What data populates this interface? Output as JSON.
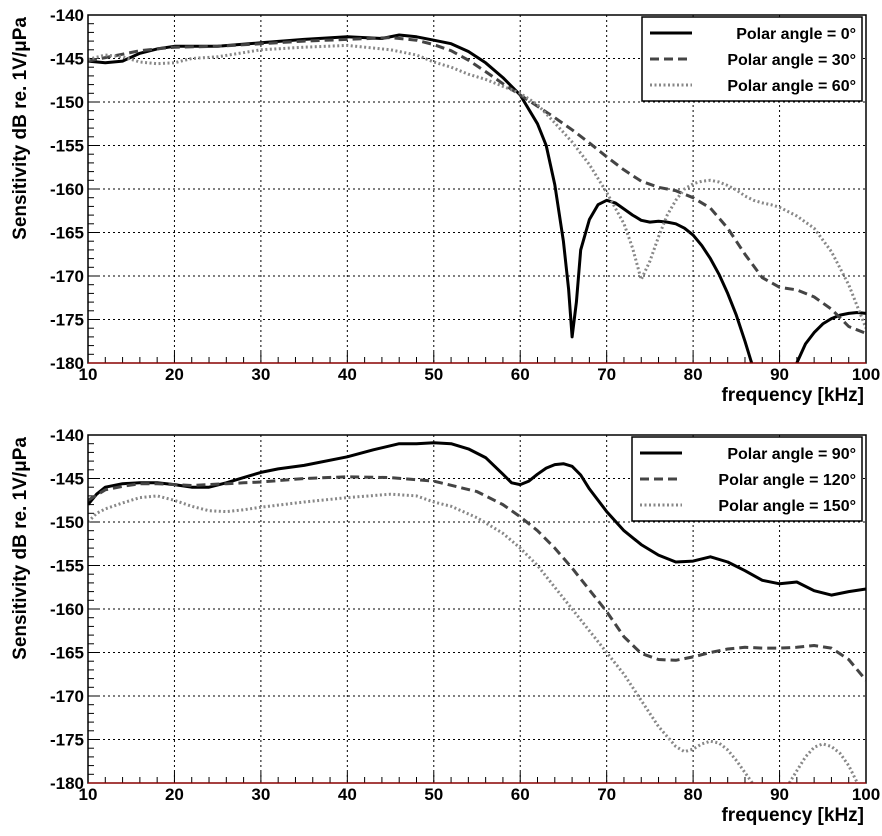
{
  "chart_data": [
    {
      "type": "line",
      "title": "",
      "xlabel": "frequency [kHz]",
      "ylabel": "Sensitivity dB re. 1V/μPa",
      "xlim": [
        10,
        100
      ],
      "ylim": [
        -180,
        -140
      ],
      "x_ticks": [
        "10",
        "20",
        "30",
        "40",
        "50",
        "60",
        "70",
        "80",
        "90",
        "100"
      ],
      "y_ticks": [
        "-140",
        "-145",
        "-150",
        "-155",
        "-160",
        "-165",
        "-170",
        "-175",
        "-180"
      ],
      "grid": true,
      "legend_position": "top-right",
      "series": [
        {
          "name": "Polar angle =   0°",
          "style": "solid",
          "color": "#000000",
          "x": [
            10,
            12,
            14,
            16,
            18,
            20,
            25,
            30,
            35,
            40,
            42,
            44,
            46,
            48,
            50,
            52,
            54,
            56,
            58,
            60,
            62,
            63,
            64,
            65,
            65.6,
            66,
            66.5,
            67,
            68,
            69,
            70,
            71,
            72,
            73,
            74,
            75,
            76,
            77,
            78,
            79,
            80,
            81,
            82,
            83,
            84,
            85,
            86,
            88,
            90,
            91,
            92,
            93,
            94,
            95,
            96,
            97,
            98,
            99,
            100
          ],
          "y": [
            -145.3,
            -145.5,
            -145.3,
            -144.4,
            -143.9,
            -143.6,
            -143.6,
            -143.2,
            -142.8,
            -142.5,
            -142.6,
            -142.7,
            -142.3,
            -142.5,
            -142.9,
            -143.3,
            -144.2,
            -145.5,
            -147.2,
            -149.2,
            -152.5,
            -155,
            -159.5,
            -166,
            -171.5,
            -177,
            -173,
            -167,
            -163.5,
            -161.8,
            -161.3,
            -161.6,
            -162.3,
            -163,
            -163.6,
            -163.8,
            -163.7,
            -163.8,
            -164,
            -164.5,
            -165.3,
            -166.5,
            -168,
            -169.8,
            -172,
            -174.5,
            -177.5,
            -184,
            -184,
            -182,
            -180,
            -177.8,
            -176.5,
            -175.5,
            -174.9,
            -174.5,
            -174.3,
            -174.2,
            -174.3
          ]
        },
        {
          "name": "Polar angle =  30°",
          "style": "dashed",
          "color": "#444444",
          "x": [
            10,
            12,
            14,
            16,
            18,
            20,
            25,
            30,
            35,
            40,
            45,
            48,
            50,
            52,
            54,
            56,
            58,
            60,
            62,
            64,
            66,
            68,
            70,
            72,
            74,
            76,
            78,
            80,
            82,
            84,
            86,
            88,
            90,
            92,
            94,
            96,
            98,
            100
          ],
          "y": [
            -145.3,
            -144.9,
            -144.5,
            -144.1,
            -143.9,
            -143.7,
            -143.6,
            -143.3,
            -143,
            -142.8,
            -142.6,
            -142.9,
            -143.4,
            -144.1,
            -145.2,
            -146.5,
            -147.9,
            -149.2,
            -150.5,
            -151.8,
            -153.2,
            -154.7,
            -156.3,
            -157.8,
            -159.1,
            -159.8,
            -160.2,
            -161,
            -162.2,
            -164.5,
            -167.5,
            -170.2,
            -171.3,
            -171.6,
            -172.4,
            -173.8,
            -175.8,
            -176.6
          ]
        },
        {
          "name": "Polar angle =  60°",
          "style": "dotted",
          "color": "#888888",
          "x": [
            10,
            12,
            14,
            16,
            18,
            20,
            22,
            25,
            30,
            35,
            40,
            45,
            48,
            50,
            52,
            54,
            56,
            58,
            60,
            62,
            64,
            66,
            68,
            70,
            72,
            73,
            74,
            75,
            76,
            77,
            78,
            79,
            80,
            81,
            82,
            83,
            84,
            85,
            86,
            87,
            88,
            89,
            90,
            92,
            94,
            96,
            98,
            100
          ],
          "y": [
            -145.1,
            -144.6,
            -144.8,
            -145.4,
            -145.6,
            -145.5,
            -145,
            -144.8,
            -144,
            -143.7,
            -143.5,
            -144,
            -144.6,
            -145.4,
            -146,
            -146.8,
            -147.4,
            -148.2,
            -149,
            -150.3,
            -152.4,
            -154.6,
            -157.2,
            -160.4,
            -164,
            -166.8,
            -170.4,
            -168.3,
            -165.5,
            -163,
            -161.3,
            -160,
            -159.4,
            -159.1,
            -159,
            -159.2,
            -159.6,
            -160.1,
            -160.8,
            -161.3,
            -161.6,
            -161.8,
            -162.1,
            -163.1,
            -164.5,
            -167.2,
            -171,
            -176
          ]
        }
      ]
    },
    {
      "type": "line",
      "title": "",
      "xlabel": "frequency [kHz]",
      "ylabel": "Sensitivity dB re. 1V/μPa",
      "xlim": [
        10,
        100
      ],
      "ylim": [
        -180,
        -140
      ],
      "x_ticks": [
        "10",
        "20",
        "30",
        "40",
        "50",
        "60",
        "70",
        "80",
        "90",
        "100"
      ],
      "y_ticks": [
        "-140",
        "-145",
        "-150",
        "-155",
        "-160",
        "-165",
        "-170",
        "-175",
        "-180"
      ],
      "grid": true,
      "legend_position": "top-right",
      "series": [
        {
          "name": "Polar angle =  90°",
          "style": "solid",
          "color": "#000000",
          "x": [
            10,
            11,
            12,
            14,
            16,
            18,
            20,
            22,
            24,
            26,
            28,
            30,
            32,
            35,
            40,
            43,
            46,
            48,
            50,
            52,
            54,
            56,
            58,
            59,
            60,
            61,
            62,
            63,
            64,
            65,
            66,
            67,
            68,
            70,
            72,
            74,
            76,
            78,
            80,
            82,
            84,
            86,
            88,
            90,
            92,
            94,
            96,
            98,
            100
          ],
          "y": [
            -148,
            -146.8,
            -146,
            -145.6,
            -145.5,
            -145.5,
            -145.7,
            -146,
            -146,
            -145.5,
            -144.9,
            -144.3,
            -143.9,
            -143.5,
            -142.5,
            -141.7,
            -141,
            -141,
            -140.9,
            -141,
            -141.6,
            -142.6,
            -144.5,
            -145.5,
            -145.7,
            -145.3,
            -144.5,
            -143.8,
            -143.4,
            -143.3,
            -143.6,
            -144.6,
            -146.2,
            -148.8,
            -151,
            -152.6,
            -153.8,
            -154.6,
            -154.5,
            -154,
            -154.6,
            -155.6,
            -156.7,
            -157.1,
            -156.9,
            -157.9,
            -158.4,
            -158,
            -157.7
          ]
        },
        {
          "name": "Polar angle = 120°",
          "style": "dashed",
          "color": "#444444",
          "x": [
            10,
            12,
            14,
            16,
            18,
            20,
            22,
            24,
            26,
            28,
            30,
            35,
            40,
            45,
            50,
            55,
            58,
            60,
            62,
            64,
            66,
            68,
            70,
            72,
            74,
            76,
            78,
            80,
            82,
            84,
            86,
            88,
            90,
            92,
            94,
            96,
            98,
            100
          ],
          "y": [
            -147.5,
            -146.3,
            -145.9,
            -145.6,
            -145.6,
            -145.7,
            -145.8,
            -145.7,
            -145.6,
            -145.5,
            -145.4,
            -145,
            -144.8,
            -144.9,
            -145.3,
            -146.5,
            -148,
            -149.4,
            -151,
            -153,
            -155.3,
            -157.8,
            -160.3,
            -163.2,
            -165.1,
            -165.8,
            -165.9,
            -165.5,
            -165,
            -164.6,
            -164.4,
            -164.5,
            -164.5,
            -164.4,
            -164.2,
            -164.5,
            -165.8,
            -168.2
          ]
        },
        {
          "name": "Polar angle = 150°",
          "style": "dotted",
          "color": "#888888",
          "x": [
            10,
            11,
            12,
            14,
            16,
            18,
            20,
            22,
            24,
            26,
            28,
            30,
            35,
            40,
            45,
            48,
            50,
            52,
            55,
            58,
            60,
            62,
            64,
            66,
            68,
            70,
            72,
            74,
            76,
            78,
            79,
            80,
            81,
            82,
            83,
            84,
            85,
            86,
            87,
            88,
            89,
            90,
            91,
            92,
            93,
            94,
            95,
            96,
            97,
            98,
            99,
            100
          ],
          "y": [
            -150,
            -149,
            -148.5,
            -147.8,
            -147.2,
            -147,
            -147.5,
            -148.2,
            -148.7,
            -148.8,
            -148.6,
            -148.3,
            -147.7,
            -147.2,
            -146.8,
            -147,
            -147.7,
            -148.2,
            -149.5,
            -151.3,
            -153,
            -155,
            -157.5,
            -160,
            -162.5,
            -165,
            -167.5,
            -170.5,
            -173.5,
            -175.8,
            -176.4,
            -176.1,
            -175.5,
            -175.2,
            -175.4,
            -176.2,
            -177.4,
            -178.8,
            -180.2,
            -181.4,
            -182,
            -181.5,
            -180.2,
            -178.6,
            -177,
            -175.9,
            -175.5,
            -175.8,
            -176.6,
            -178,
            -180,
            -182
          ]
        }
      ]
    }
  ]
}
